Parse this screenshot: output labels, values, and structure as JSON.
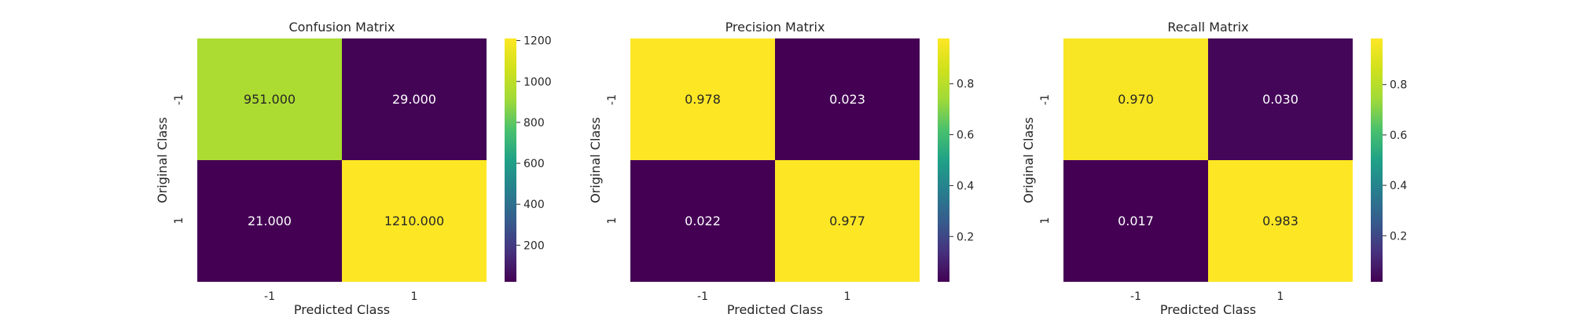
{
  "chart_data": [
    {
      "type": "heatmap",
      "title": "Confusion Matrix",
      "xlabel": "Predicted Class",
      "ylabel": "Original Class",
      "x_categories": [
        "-1",
        "1"
      ],
      "y_categories": [
        "-1",
        "1"
      ],
      "values": [
        [
          951.0,
          29.0
        ],
        [
          21.0,
          1210.0
        ]
      ],
      "annotations": [
        [
          "951.000",
          "29.000"
        ],
        [
          "21.000",
          "1210.000"
        ]
      ],
      "colormap": "viridis",
      "vmin": 21,
      "vmax": 1210,
      "colorbar_ticks": [
        200,
        400,
        600,
        800,
        1000,
        1200
      ]
    },
    {
      "type": "heatmap",
      "title": "Precision Matrix",
      "xlabel": "Predicted Class",
      "ylabel": "Original Class",
      "x_categories": [
        "-1",
        "1"
      ],
      "y_categories": [
        "-1",
        "1"
      ],
      "values": [
        [
          0.978,
          0.023
        ],
        [
          0.022,
          0.977
        ]
      ],
      "annotations": [
        [
          "0.978",
          "0.023"
        ],
        [
          "0.022",
          "0.977"
        ]
      ],
      "colormap": "viridis",
      "vmin": 0.022,
      "vmax": 0.978,
      "colorbar_ticks": [
        0.2,
        0.4,
        0.6,
        0.8
      ]
    },
    {
      "type": "heatmap",
      "title": "Recall Matrix",
      "xlabel": "Predicted Class",
      "ylabel": "Original Class",
      "x_categories": [
        "-1",
        "1"
      ],
      "y_categories": [
        "-1",
        "1"
      ],
      "values": [
        [
          0.97,
          0.03
        ],
        [
          0.017,
          0.983
        ]
      ],
      "annotations": [
        [
          "0.970",
          "0.030"
        ],
        [
          "0.017",
          "0.983"
        ]
      ],
      "colormap": "viridis",
      "vmin": 0.017,
      "vmax": 0.983,
      "colorbar_ticks": [
        0.2,
        0.4,
        0.6,
        0.8
      ]
    }
  ]
}
